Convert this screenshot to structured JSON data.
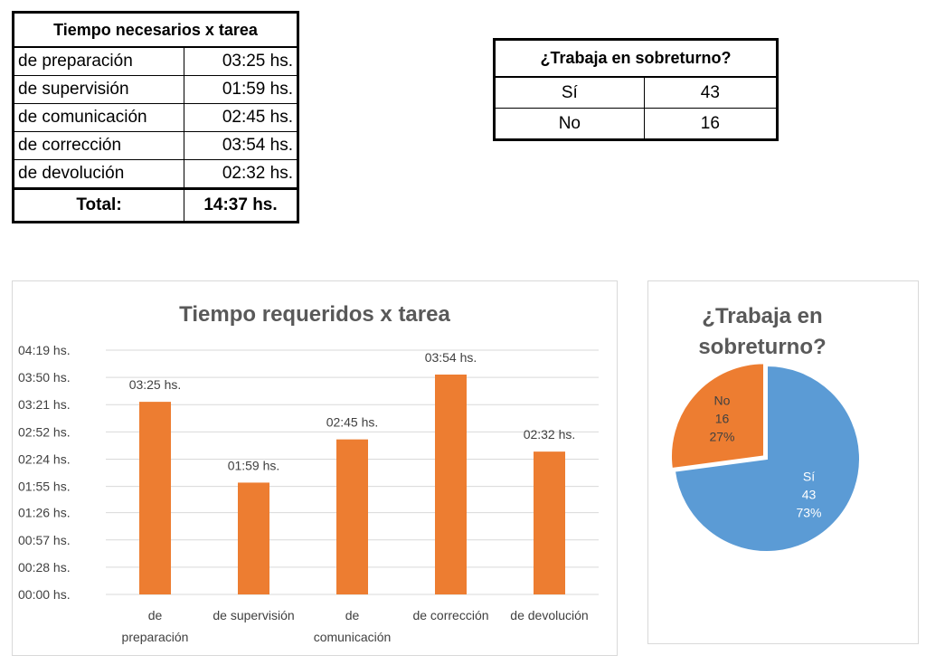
{
  "time_table": {
    "header": "Tiempo necesarios x tarea",
    "rows": [
      {
        "label": "de preparación",
        "value": "03:25 hs."
      },
      {
        "label": "de supervisión",
        "value": "01:59 hs."
      },
      {
        "label": "de comunicación",
        "value": "02:45 hs."
      },
      {
        "label": "de corrección",
        "value": "03:54 hs."
      },
      {
        "label": "de devolución",
        "value": "02:32 hs."
      }
    ],
    "total_label": "Total:",
    "total_value": "14:37 hs."
  },
  "overtime_table": {
    "header": "¿Trabaja en sobreturno?",
    "rows": [
      {
        "label": "Sí",
        "value": "43"
      },
      {
        "label": "No",
        "value": "16"
      }
    ]
  },
  "chart_data": [
    {
      "type": "bar",
      "title": "Tiempo requeridos x tarea",
      "categories": [
        [
          "de",
          "preparación"
        ],
        [
          "de supervisión"
        ],
        [
          "de",
          "comunicación"
        ],
        [
          "de corrección"
        ],
        [
          "de devolución"
        ]
      ],
      "values": [
        205,
        119,
        165,
        234,
        152
      ],
      "value_labels": [
        "03:25 hs.",
        "01:59 hs.",
        "02:45 hs.",
        "03:54 hs.",
        "02:32 hs."
      ],
      "y_ticks": [
        0,
        29,
        58,
        87,
        115,
        144,
        173,
        202,
        231,
        260
      ],
      "y_tick_labels": [
        "00:00 hs.",
        "00:28 hs.",
        "00:57 hs.",
        "01:26 hs.",
        "01:55 hs.",
        "02:24 hs.",
        "02:52 hs.",
        "03:21 hs.",
        "03:50 hs.",
        "04:19 hs."
      ],
      "ylim": [
        0,
        260
      ],
      "grid": true,
      "color": "#ed7d31"
    },
    {
      "type": "pie",
      "title": [
        "¿Trabaja en",
        "sobreturno?"
      ],
      "slices": [
        {
          "name": "Sí",
          "value": 43,
          "percent": "73%",
          "color": "#5b9bd5"
        },
        {
          "name": "No",
          "value": 16,
          "percent": "27%",
          "color": "#ed7d31"
        }
      ]
    }
  ]
}
